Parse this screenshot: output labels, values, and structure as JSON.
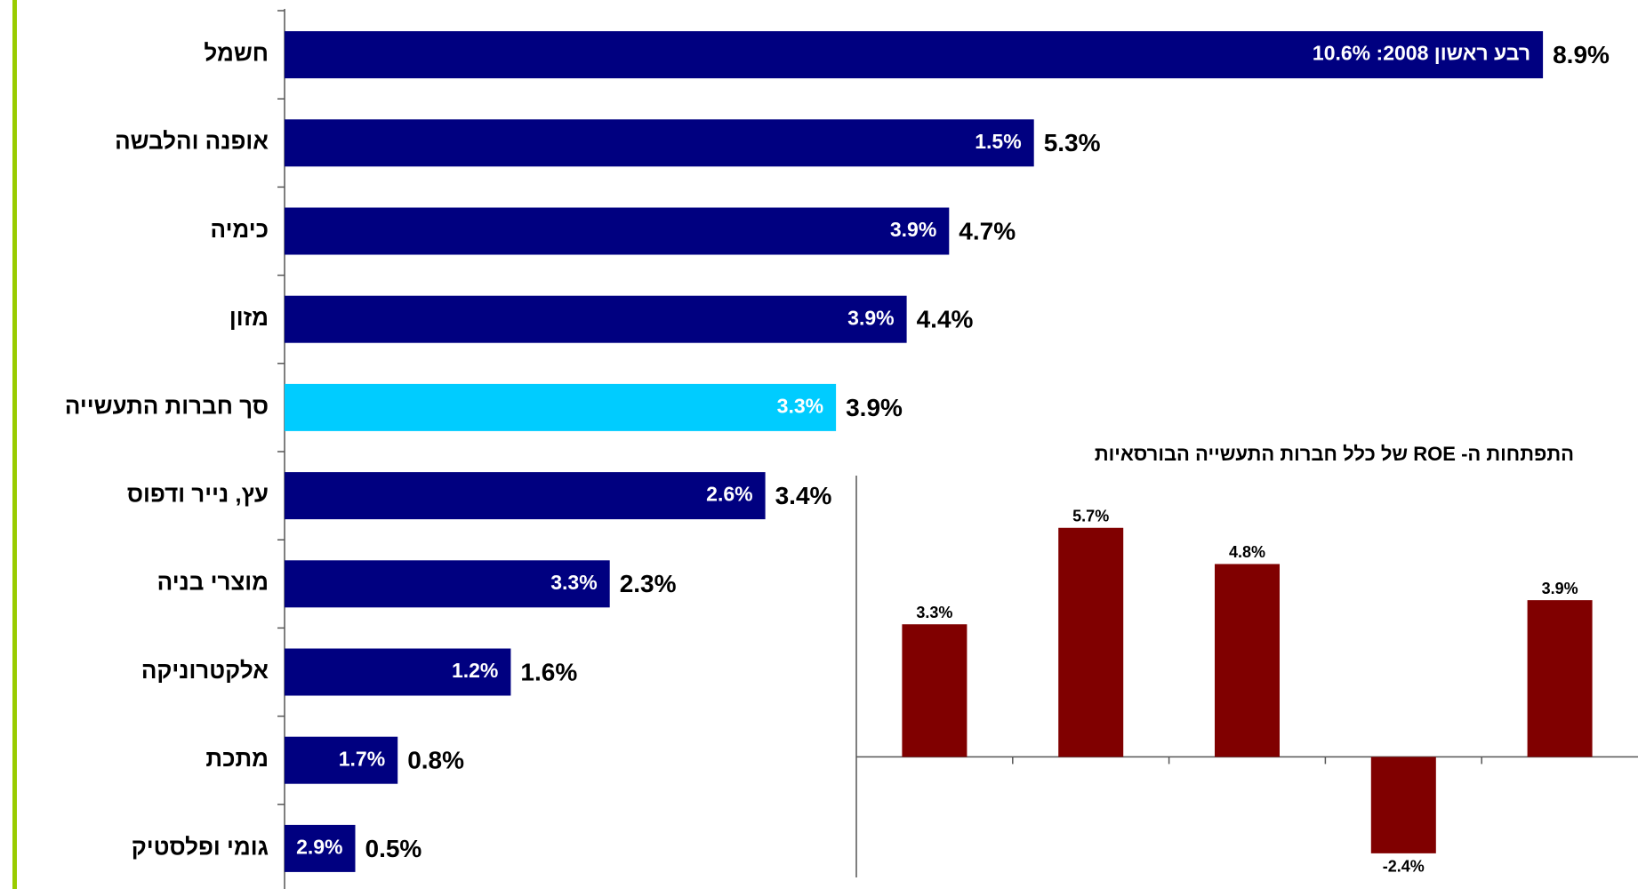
{
  "chart_data": [
    {
      "type": "hbar",
      "categories": [
        "חשמל",
        "אופנה והלבשה",
        "כימיה",
        "מזון",
        "סך חברות התעשייה",
        "עץ, נייר ודפוס",
        "מוצרי בניה",
        "אלקטרוניקה",
        "מתכת",
        "גומי ופלסטיק"
      ],
      "values": [
        8.9,
        5.3,
        4.7,
        4.4,
        3.9,
        3.4,
        2.3,
        1.6,
        0.8,
        0.5
      ],
      "value_labels": [
        "8.9%",
        "5.3%",
        "4.7%",
        "4.4%",
        "3.9%",
        "3.4%",
        "2.3%",
        "1.6%",
        "0.8%",
        "0.5%"
      ],
      "inner_labels": [
        "רבע ראשון 2008: 10.6%",
        "1.5%",
        "3.9%",
        "3.9%",
        "3.3%",
        "2.6%",
        "3.3%",
        "1.2%",
        "1.7%",
        "2.9%"
      ],
      "colors": [
        "#000080",
        "#000080",
        "#000080",
        "#000080",
        "#00ccff",
        "#000080",
        "#000080",
        "#000080",
        "#000080",
        "#000080"
      ],
      "xlim": [
        0,
        10
      ]
    },
    {
      "type": "bar",
      "title": "התפתחות ה- ROE של כלל חברות התעשייה הבורסאיות",
      "categories": [
        null,
        null,
        null,
        null,
        null
      ],
      "values": [
        3.3,
        5.7,
        4.8,
        -2.4,
        3.9
      ],
      "value_labels": [
        "3.3%",
        "5.7%",
        "4.8%",
        "-2.4%",
        "3.9%"
      ],
      "color": "#800000",
      "ylim": [
        -3,
        7
      ]
    }
  ]
}
